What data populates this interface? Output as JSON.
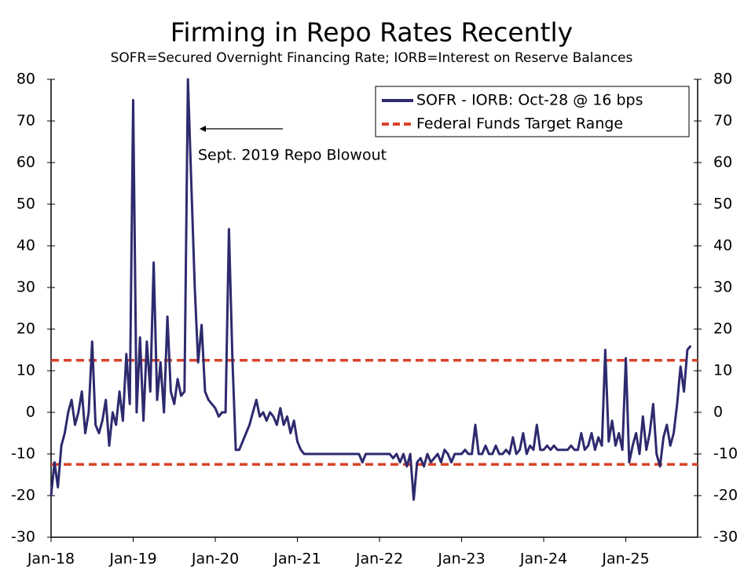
{
  "chart_data": {
    "type": "line",
    "title": "Firming in Repo Rates Recently",
    "subtitle": "SOFR=Secured Overnight Financing Rate; IORB=Interest on Reserve Balances",
    "annotation": "Sept. 2019 Repo Blowout",
    "categories": [
      "Jan-18",
      null,
      null,
      null,
      null,
      null,
      null,
      null,
      null,
      null,
      null,
      null,
      null,
      null,
      null,
      null,
      null,
      null,
      null,
      null,
      null,
      null,
      null,
      null,
      "Jan-19",
      null,
      null,
      null,
      null,
      null,
      null,
      null,
      null,
      null,
      null,
      null,
      null,
      null,
      null,
      null,
      null,
      null,
      null,
      null,
      null,
      null,
      null,
      null,
      "Jan-20",
      null,
      null,
      null,
      null,
      null,
      null,
      null,
      null,
      null,
      null,
      null,
      null,
      null,
      null,
      null,
      null,
      null,
      null,
      null,
      null,
      null,
      null,
      null,
      "Jan-21",
      null,
      null,
      null,
      null,
      null,
      null,
      null,
      null,
      null,
      null,
      null,
      null,
      null,
      null,
      null,
      null,
      null,
      null,
      null,
      null,
      null,
      null,
      null,
      "Jan-22",
      null,
      null,
      null,
      null,
      null,
      null,
      null,
      null,
      null,
      null,
      null,
      null,
      null,
      null,
      null,
      null,
      null,
      null,
      null,
      null,
      null,
      null,
      null,
      "Jan-23",
      null,
      null,
      null,
      null,
      null,
      null,
      null,
      null,
      null,
      null,
      null,
      null,
      null,
      null,
      null,
      null,
      null,
      null,
      null,
      null,
      null,
      null,
      null,
      "Jan-24",
      null,
      null,
      null,
      null,
      null,
      null,
      null,
      null,
      null,
      null,
      null,
      null,
      null,
      null,
      null,
      null,
      null,
      null,
      null,
      null,
      null,
      null,
      null,
      "Jan-25",
      null,
      null,
      null,
      null,
      null,
      null,
      null,
      null,
      null,
      null,
      null,
      null,
      null,
      null,
      null,
      null,
      null,
      null,
      null
    ],
    "series": [
      {
        "name": "SOFR - IORB: Oct-28 @ 16 bps",
        "color": "#2e2a6e",
        "values": [
          -20,
          -12,
          -18,
          -8,
          -5,
          0,
          3,
          -3,
          0,
          5,
          -5,
          0,
          17,
          -3,
          -5,
          -2,
          3,
          -8,
          0,
          -3,
          5,
          -2,
          14,
          2,
          75,
          0,
          18,
          -2,
          17,
          5,
          36,
          3,
          12,
          0,
          23,
          5,
          2,
          8,
          4,
          5,
          80,
          55,
          30,
          12,
          21,
          5,
          3,
          2,
          1,
          -1,
          0,
          0,
          44,
          13,
          -9,
          -9,
          -7,
          -5,
          -3,
          0,
          3,
          -1,
          0,
          -2,
          0,
          -1,
          -3,
          1,
          -3,
          -1,
          -5,
          -2,
          -7,
          -9,
          -10,
          -10,
          -10,
          -10,
          -10,
          -10,
          -10,
          -10,
          -10,
          -10,
          -10,
          -10,
          -10,
          -10,
          -10,
          -10,
          -10,
          -12,
          -10,
          -10,
          -10,
          -10,
          -10,
          -10,
          -10,
          -10,
          -11,
          -10,
          -12,
          -10,
          -13,
          -10,
          -21,
          -12,
          -11,
          -13,
          -10,
          -12,
          -11,
          -10,
          -12,
          -9,
          -10,
          -12,
          -10,
          -10,
          -10,
          -9,
          -10,
          -10,
          -3,
          -10,
          -10,
          -8,
          -10,
          -10,
          -8,
          -10,
          -10,
          -9,
          -10,
          -6,
          -10,
          -9,
          -5,
          -10,
          -8,
          -9,
          -3,
          -9,
          -9,
          -8,
          -9,
          -8,
          -9,
          -9,
          -9,
          -9,
          -8,
          -9,
          -9,
          -5,
          -9,
          -8,
          -5,
          -9,
          -6,
          -8,
          15,
          -7,
          -2,
          -8,
          -5,
          -9,
          13,
          -12,
          -8,
          -5,
          -10,
          -1,
          -9,
          -5,
          2,
          -10,
          -13,
          -6,
          -3,
          -8,
          -5,
          2,
          11,
          5,
          15,
          16
        ]
      }
    ],
    "reference_lines": {
      "name": "Federal Funds Target Range",
      "color": "#d9442b",
      "values": [
        12.5,
        -12.5
      ]
    },
    "ylim": [
      -30,
      80
    ],
    "yticks": [
      -30,
      -20,
      -10,
      0,
      10,
      20,
      30,
      40,
      50,
      60,
      70,
      80
    ],
    "y2lim": [
      -30,
      80
    ],
    "y2ticks": [
      -30,
      -20,
      -10,
      0,
      10,
      20,
      30,
      40,
      50,
      60,
      70,
      80
    ],
    "grid": false
  }
}
